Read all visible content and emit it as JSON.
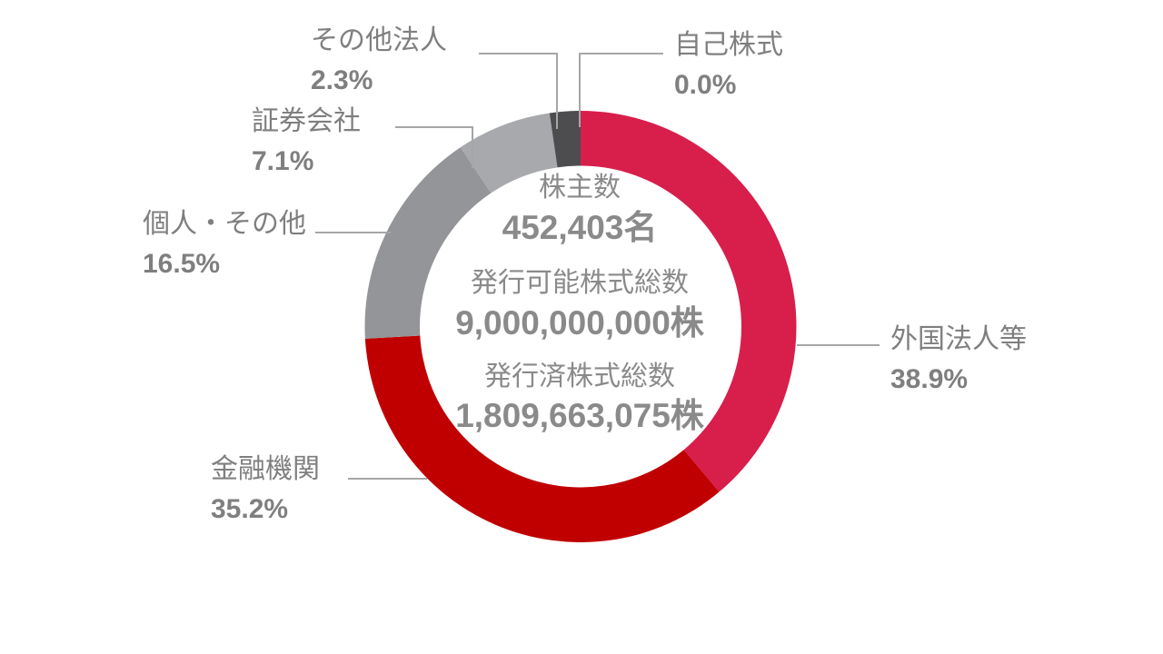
{
  "chart_data": {
    "type": "pie",
    "variant": "donut",
    "title": "",
    "categories": [
      "外国法人等",
      "金融機関",
      "個人・その他",
      "証券会社",
      "その他法人",
      "自己株式"
    ],
    "values": [
      38.9,
      35.2,
      16.5,
      7.1,
      2.3,
      0.0
    ],
    "value_labels": [
      "38.9%",
      "35.2%",
      "16.5%",
      "7.1%",
      "2.3%",
      "0.0%"
    ],
    "unit": "%",
    "colors": [
      "#D81E4B",
      "#C00000",
      "#939598",
      "#A7A9AC",
      "#4D4D4F",
      "#4D4D4F"
    ],
    "start_angle": "top, clockwise",
    "legend": "leader-line labels",
    "center_text": [
      "株主数",
      "452,403名",
      "発行可能株式総数",
      "9,000,000,000株",
      "発行済株式総数",
      "1,809,663,075株"
    ]
  },
  "segments": [
    {
      "label": "外国法人等",
      "percent": "38.9%"
    },
    {
      "label": "金融機関",
      "percent": "35.2%"
    },
    {
      "label": "個人・その他",
      "percent": "16.5%"
    },
    {
      "label": "証券会社",
      "percent": "7.1%"
    },
    {
      "label": "その他法人",
      "percent": "2.3%"
    },
    {
      "label": "自己株式",
      "percent": "0.0%"
    }
  ],
  "center": {
    "shareholders_label": "株主数",
    "shareholders_value": "452,403名",
    "authorized_label": "発行可能株式総数",
    "authorized_value": "9,000,000,000株",
    "issued_label": "発行済株式総数",
    "issued_value": "1,809,663,075株"
  }
}
